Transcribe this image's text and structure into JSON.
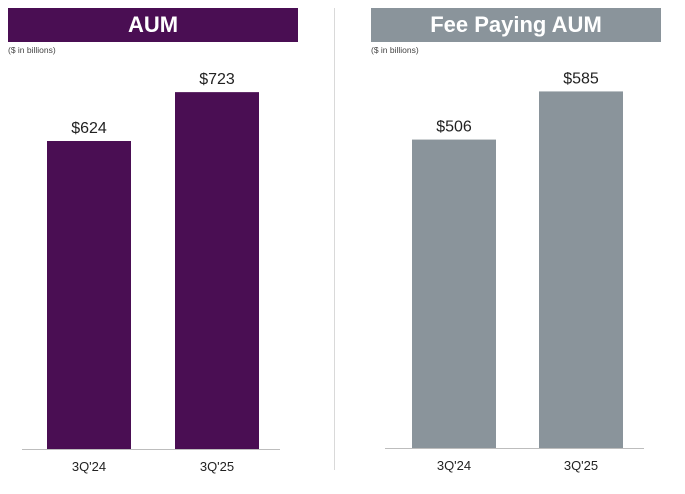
{
  "colors": {
    "aum": "#4a0e53",
    "fee_paying": "#8a949b",
    "baseline": "#bdbdbd",
    "label": "#222222"
  },
  "chart_data": [
    {
      "type": "bar",
      "title": "AUM",
      "subtitle": "($ in billions)",
      "categories": [
        "3Q'24",
        "3Q'25"
      ],
      "values": [
        624,
        723
      ],
      "data_labels": [
        "$624",
        "$723"
      ],
      "ylim": [
        0,
        780
      ]
    },
    {
      "type": "bar",
      "title": "Fee Paying AUM",
      "subtitle": "($ in billions)",
      "categories": [
        "3Q'24",
        "3Q'25"
      ],
      "values": [
        506,
        585
      ],
      "data_labels": [
        "$506",
        "$585"
      ],
      "ylim": [
        0,
        630
      ]
    }
  ]
}
